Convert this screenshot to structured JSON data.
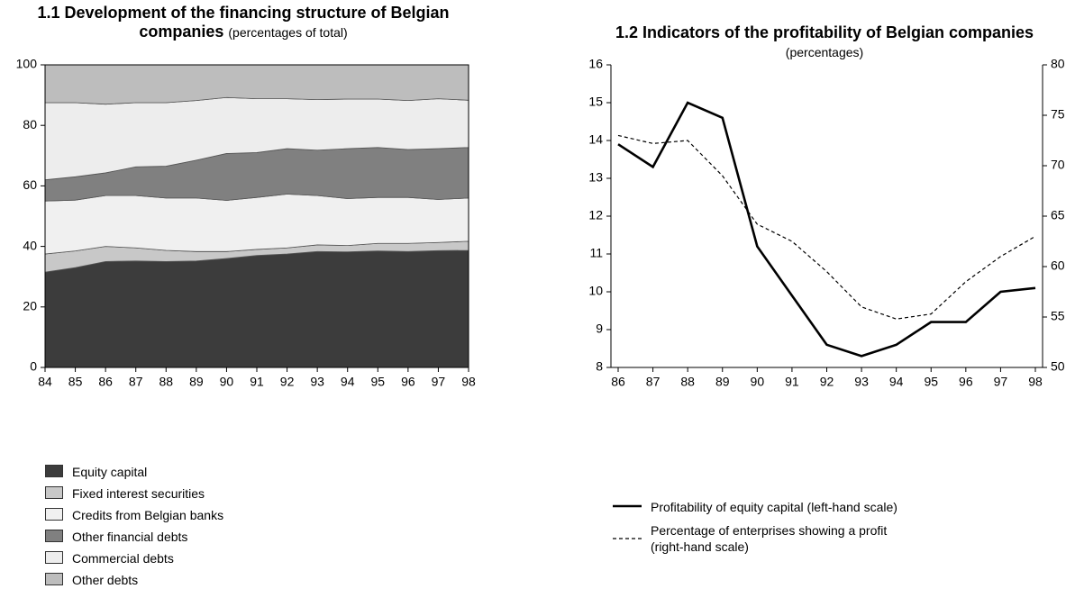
{
  "chart_data": [
    {
      "type": "area",
      "stacked": true,
      "title": "1.1 Development of the financing structure of Belgian companies",
      "subtitle": "(percentages of total)",
      "categories": [
        "84",
        "85",
        "86",
        "87",
        "88",
        "89",
        "90",
        "91",
        "92",
        "93",
        "94",
        "95",
        "96",
        "97",
        "98"
      ],
      "ylim": [
        0,
        100
      ],
      "yticks": [
        0,
        20,
        40,
        60,
        80,
        100
      ],
      "series": [
        {
          "name": "Equity capital",
          "color": "#3c3c3c",
          "values": [
            31.5,
            33,
            35,
            35.2,
            35,
            35.2,
            36,
            37,
            37.5,
            38.3,
            38.2,
            38.5,
            38.3,
            38.6,
            38.7
          ]
        },
        {
          "name": "Fixed interest securities",
          "color": "#c8c8c8",
          "values": [
            6,
            5.5,
            5,
            4.3,
            3.7,
            3.1,
            2.3,
            2,
            2,
            2.2,
            2.1,
            2.5,
            2.7,
            2.7,
            3
          ]
        },
        {
          "name": "Credits from Belgian banks",
          "color": "#f0f0f0",
          "values": [
            17.5,
            16.8,
            16.8,
            17.3,
            17.3,
            17.7,
            16.9,
            17.2,
            17.8,
            16.3,
            15.5,
            15.2,
            15.2,
            14.2,
            14.3
          ]
        },
        {
          "name": "Other financial debts",
          "color": "#808080",
          "values": [
            7,
            7.7,
            7.5,
            9.5,
            10.5,
            12.5,
            15.5,
            14.8,
            15,
            15,
            16.5,
            16.5,
            15.8,
            16.8,
            16.7
          ]
        },
        {
          "name": "Commercial debts",
          "color": "#ededed",
          "values": [
            25.5,
            24.5,
            22.7,
            21.2,
            21,
            19.7,
            18.5,
            17.8,
            16.5,
            16.7,
            16.4,
            16,
            16.2,
            16.5,
            15.6
          ]
        },
        {
          "name": "Other debts",
          "color": "#bdbdbd",
          "values": [
            12.5,
            12.5,
            13,
            12.5,
            12.5,
            11.8,
            10.8,
            11.2,
            11.2,
            11.5,
            11.3,
            11.3,
            11.8,
            11.2,
            11.7
          ]
        }
      ]
    },
    {
      "type": "line",
      "title": "1.2 Indicators of the profitability of Belgian companies",
      "subtitle": "(percentages)",
      "categories": [
        "86",
        "87",
        "88",
        "89",
        "90",
        "91",
        "92",
        "93",
        "94",
        "95",
        "96",
        "97",
        "98"
      ],
      "ylim": [
        8,
        16
      ],
      "yticks": [
        8,
        9,
        10,
        11,
        12,
        13,
        14,
        15,
        16
      ],
      "y2lim": [
        50,
        80
      ],
      "y2ticks": [
        50,
        55,
        60,
        65,
        70,
        75,
        80
      ],
      "series": [
        {
          "name": "Profitability of equity capital (left-hand scale)",
          "color": "#000000",
          "line_style": "solid",
          "values": [
            13.9,
            13.3,
            15,
            14.6,
            11.2,
            9.9,
            8.6,
            8.3,
            8.6,
            9.2,
            9.2,
            10,
            10.1
          ]
        },
        {
          "name": "Percentage of enterprises showing a profit (right-hand scale)",
          "color": "#000000",
          "line_style": "dashed",
          "axis": "y2",
          "values": [
            73,
            72.2,
            72.5,
            69,
            64.2,
            62.5,
            59.5,
            56,
            54.8,
            55.3,
            58.5,
            61,
            63
          ]
        }
      ]
    }
  ]
}
